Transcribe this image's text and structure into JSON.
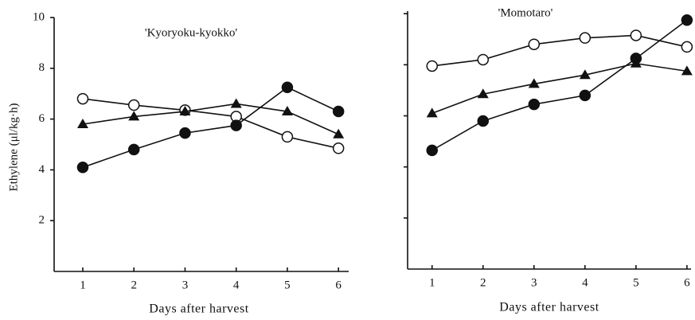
{
  "chart_data": [
    {
      "type": "line",
      "y_label": "Ethylene (μl/kg·h)",
      "x_label": "Days after harvest",
      "annotation": "'Kyoryoku-kyokko'",
      "xlim": [
        0.44,
        6.2
      ],
      "xticks": [
        1,
        2,
        3,
        4,
        5,
        6
      ],
      "ylim": [
        0,
        10
      ],
      "yticks": [
        2,
        4,
        6,
        8,
        10
      ],
      "show_ytick_labels": true,
      "x": [
        1,
        2,
        3,
        4,
        5,
        6
      ],
      "series": [
        {
          "marker": "open-circle",
          "color": "#111",
          "values": [
            6.8,
            6.55,
            6.35,
            6.1,
            5.3,
            4.85
          ]
        },
        {
          "marker": "triangle",
          "color": "#111",
          "values": [
            5.8,
            6.1,
            6.3,
            6.6,
            6.3,
            5.4
          ]
        },
        {
          "marker": "filled-circle",
          "color": "#111",
          "values": [
            4.1,
            4.8,
            5.45,
            5.75,
            7.25,
            6.3
          ]
        }
      ]
    },
    {
      "type": "line",
      "x_label": "Days after harvest",
      "annotation": "'Momotaro'",
      "xlim": [
        0.52,
        6.08
      ],
      "xticks": [
        1,
        2,
        3,
        4,
        5,
        6
      ],
      "ylim": [
        0,
        10.1
      ],
      "yticks": [
        2,
        4,
        6,
        8,
        10
      ],
      "show_ytick_labels": false,
      "x": [
        1,
        2,
        3,
        4,
        5,
        6
      ],
      "series": [
        {
          "marker": "open-circle",
          "color": "#111",
          "values": [
            7.95,
            8.2,
            8.8,
            9.05,
            9.15,
            8.7
          ]
        },
        {
          "marker": "triangle",
          "color": "#111",
          "values": [
            6.1,
            6.85,
            7.25,
            7.6,
            8.05,
            7.75
          ]
        },
        {
          "marker": "filled-circle",
          "color": "#111",
          "values": [
            4.65,
            5.8,
            6.45,
            6.8,
            8.25,
            9.75
          ]
        }
      ]
    }
  ]
}
